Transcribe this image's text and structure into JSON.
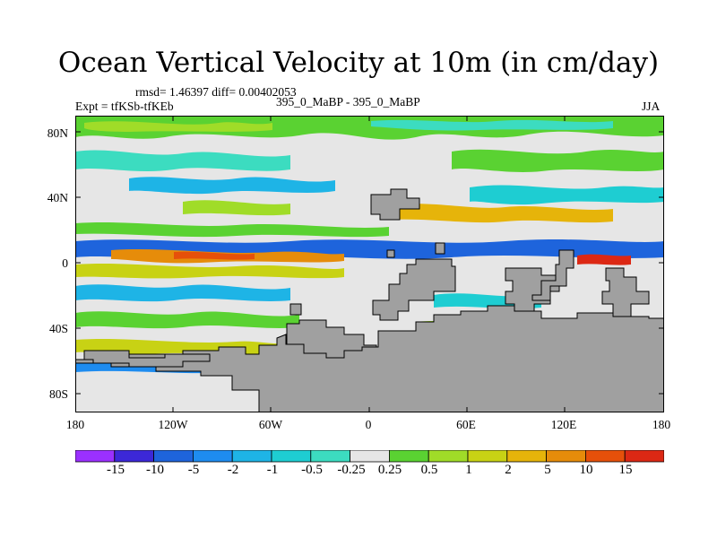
{
  "title": "Ocean Vertical Velocity at 10m (in cm/day)",
  "stats": "rmsd= 1.46397 diff= 0.00402053",
  "expt": "Expt = tfKSb-tfKEb",
  "center": "395_0_MaBP - 395_0_MaBP",
  "season": "JJA",
  "y_ticks": [
    "80N",
    "40N",
    "0",
    "40S",
    "80S"
  ],
  "x_ticks": [
    "180",
    "120W",
    "60W",
    "0",
    "60E",
    "120E",
    "180"
  ],
  "colorbar": {
    "labels": [
      "-15",
      "-10",
      "-5",
      "-2",
      "-1",
      "-0.5",
      "-0.25",
      "0.25",
      "0.5",
      "1",
      "2",
      "5",
      "10",
      "15"
    ],
    "colors": [
      "#9b30ff",
      "#3c28d8",
      "#1e64dc",
      "#1e8cf0",
      "#1eb4e6",
      "#1ecdd2",
      "#3cdcc0",
      "#e6e6e6",
      "#5ad232",
      "#a0dc28",
      "#c8d214",
      "#e6b40a",
      "#e68c0a",
      "#e6500a",
      "#dc2814"
    ]
  },
  "land_color": "#a0a0a0"
}
